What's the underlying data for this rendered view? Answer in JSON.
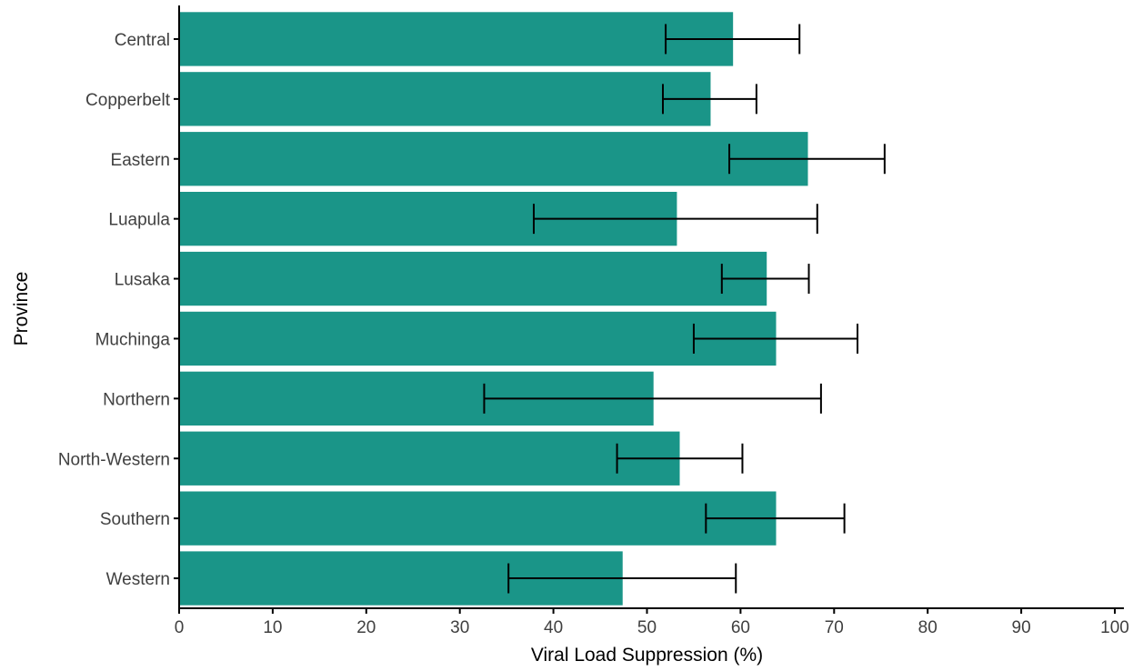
{
  "chart_data": {
    "type": "bar",
    "orientation": "horizontal",
    "title": "",
    "xlabel": "Viral Load Suppression (%)",
    "ylabel": "Province",
    "xlim": [
      0,
      100
    ],
    "xticks": [
      0,
      10,
      20,
      30,
      40,
      50,
      60,
      70,
      80,
      90,
      100
    ],
    "categories": [
      "Central",
      "Copperbelt",
      "Eastern",
      "Luapula",
      "Lusaka",
      "Muchinga",
      "Northern",
      "North-Western",
      "Southern",
      "Western"
    ],
    "values": [
      59.2,
      56.8,
      67.2,
      53.2,
      62.8,
      63.8,
      50.7,
      53.5,
      63.8,
      47.4
    ],
    "error_low": [
      52.0,
      51.7,
      58.8,
      37.9,
      58.0,
      55.0,
      32.6,
      46.8,
      56.3,
      35.2
    ],
    "error_high": [
      66.3,
      61.7,
      75.4,
      68.2,
      67.3,
      72.5,
      68.6,
      60.2,
      71.1,
      59.5
    ],
    "bar_color": "#1a9588",
    "error_bar_color": "#000000",
    "grid": false,
    "legend": "none"
  }
}
